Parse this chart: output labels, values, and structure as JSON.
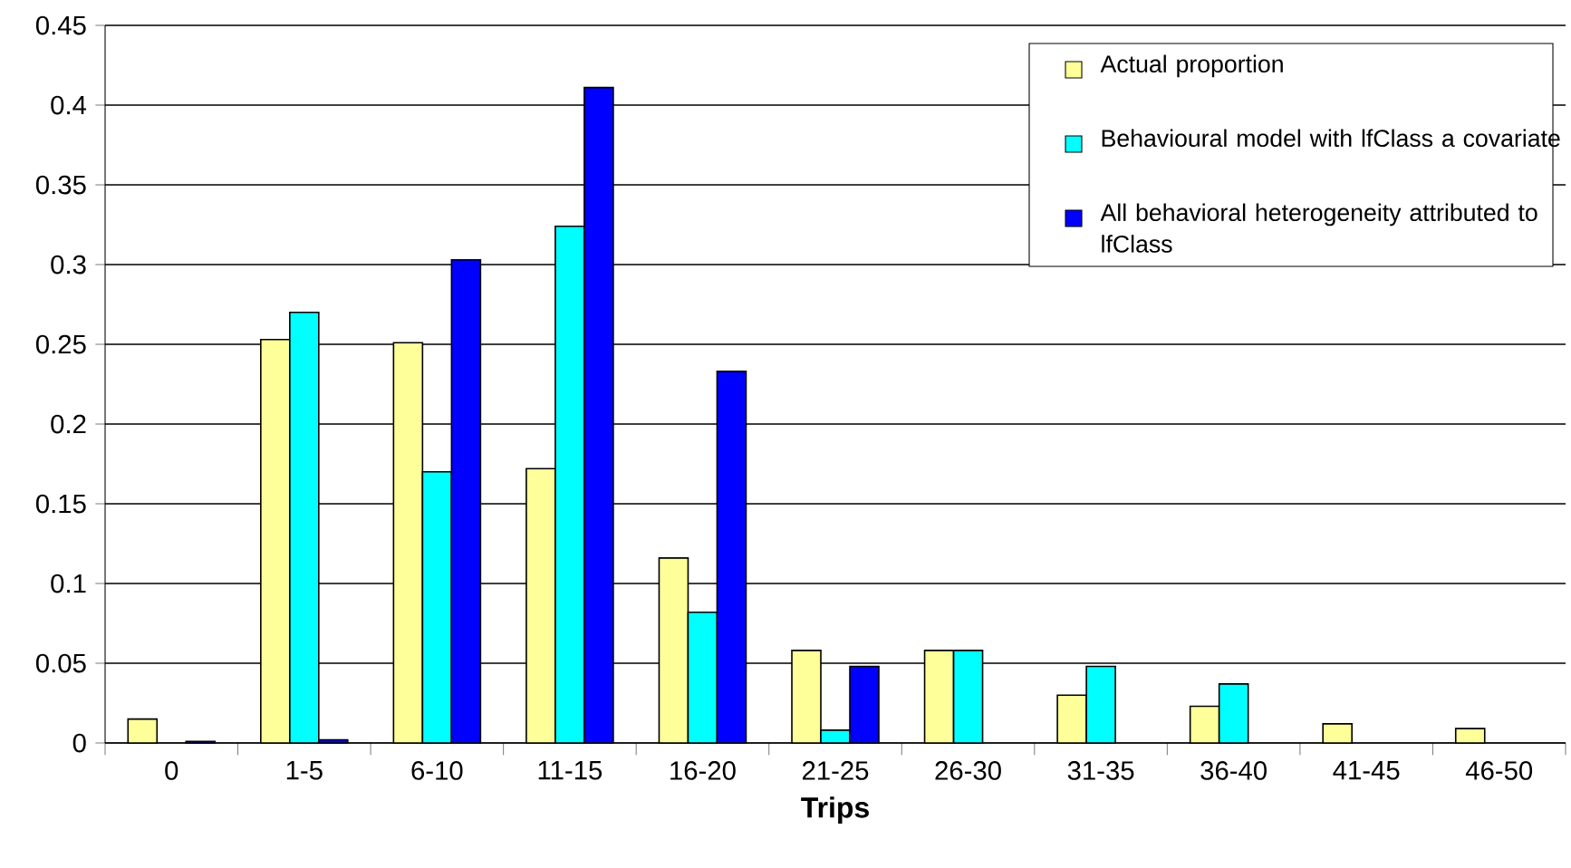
{
  "chart_data": {
    "type": "bar",
    "xlabel": "Trips",
    "categories": [
      "0",
      "1-5",
      "6-10",
      "11-15",
      "16-20",
      "21-25",
      "26-30",
      "31-35",
      "36-40",
      "41-45",
      "46-50"
    ],
    "series": [
      {
        "name": "Actual proportion",
        "color": "#ffff99",
        "values": [
          0.015,
          0.253,
          0.251,
          0.172,
          0.116,
          0.058,
          0.058,
          0.03,
          0.023,
          0.012,
          0.009
        ]
      },
      {
        "name": "Behavioural model with lfClass a covariate",
        "color": "#00ffff",
        "values": [
          null,
          0.27,
          0.17,
          0.324,
          0.082,
          0.008,
          0.058,
          0.048,
          0.037,
          null,
          null
        ]
      },
      {
        "name": "All behavioral heterogeneity attributed to lfClass",
        "color": "#0000ff",
        "values": [
          0.001,
          0.002,
          0.303,
          0.411,
          0.233,
          0.048,
          null,
          null,
          null,
          null,
          null
        ]
      }
    ],
    "ylim": [
      0,
      0.45
    ],
    "yticks": [
      0,
      0.05,
      0.1,
      0.15,
      0.2,
      0.25,
      0.3,
      0.35,
      0.4,
      0.45
    ],
    "grid": "y",
    "legend": "top right"
  }
}
